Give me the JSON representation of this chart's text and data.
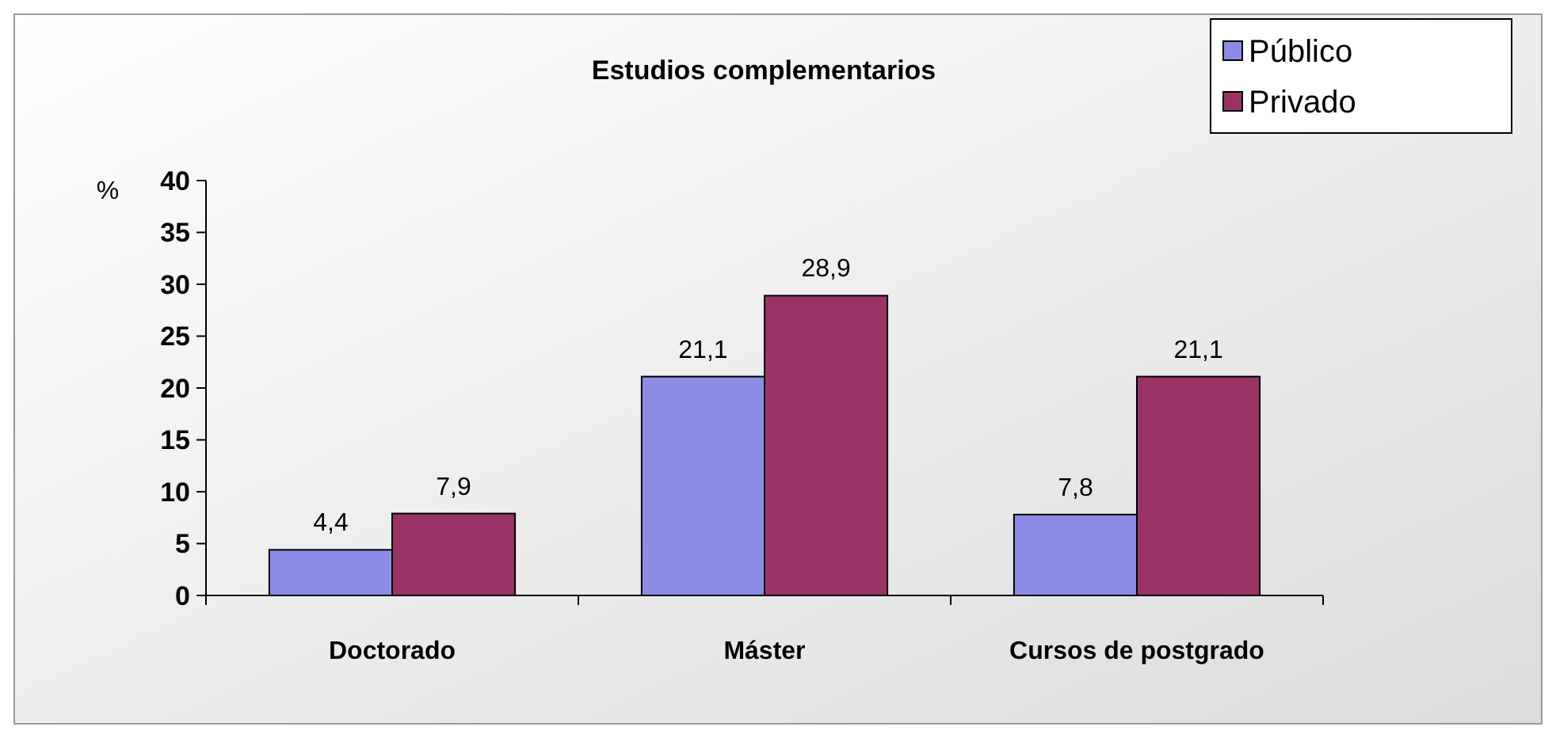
{
  "chart_data": {
    "type": "bar",
    "title": "Estudios complementarios",
    "ylabel": "%",
    "categories": [
      "Doctorado",
      "Máster",
      "Cursos de postgrado"
    ],
    "series": [
      {
        "name": "Público",
        "color": "#8c8ce6",
        "values": [
          4.4,
          21.1,
          7.8
        ],
        "value_labels": [
          "4,4",
          "21,1",
          "7,8"
        ]
      },
      {
        "name": "Privado",
        "color": "#993366",
        "values": [
          7.9,
          28.9,
          21.1
        ],
        "value_labels": [
          "7,9",
          "28,9",
          "21,1"
        ]
      }
    ],
    "ylim": [
      0,
      40
    ],
    "yticks": [
      0,
      5,
      10,
      15,
      20,
      25,
      30,
      35,
      40
    ],
    "grid": false,
    "legend": "top right"
  }
}
